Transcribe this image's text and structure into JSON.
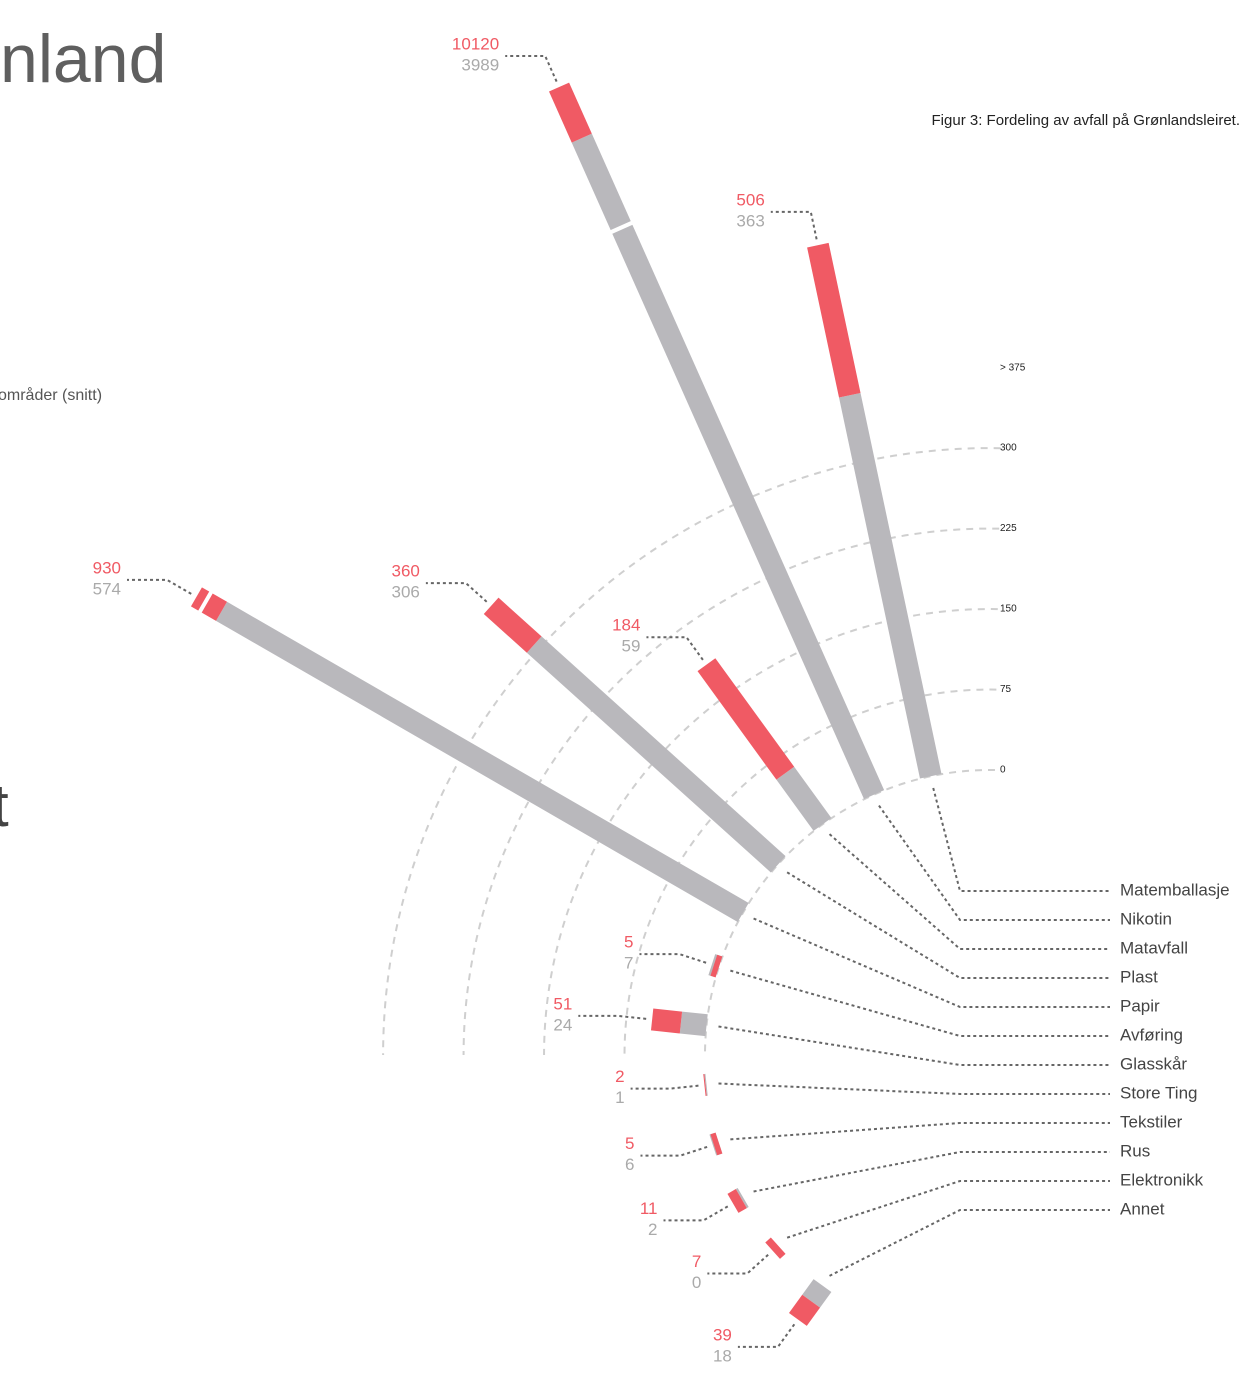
{
  "chart_data": {
    "type": "radial-bar",
    "title": "nland",
    "subtitle": "områder (snitt)",
    "annotations": [
      "t"
    ],
    "caption": "Figur 3: Fordeling av avfall på Grønlandsleiret.",
    "categories": [
      "Matemballasje",
      "Nikotin",
      "Matavfall",
      "Plast",
      "Papir",
      "Avføring",
      "Glasskår",
      "Store Ting",
      "Tekstiler",
      "Rus",
      "Elektronikk",
      "Annet"
    ],
    "series": [
      {
        "color": "#f05a64",
        "values": [
          506,
          10120,
          184,
          360,
          930,
          5,
          51,
          2,
          5,
          11,
          7,
          39
        ]
      },
      {
        "color": "#b9b8bc",
        "values": [
          363,
          3989,
          59,
          306,
          574,
          7,
          24,
          1,
          6,
          2,
          0,
          18
        ]
      }
    ],
    "rticks": [
      0,
      75,
      150,
      225,
      300,
      {
        "value": 375,
        "label": "> 375"
      }
    ],
    "grid": true
  }
}
